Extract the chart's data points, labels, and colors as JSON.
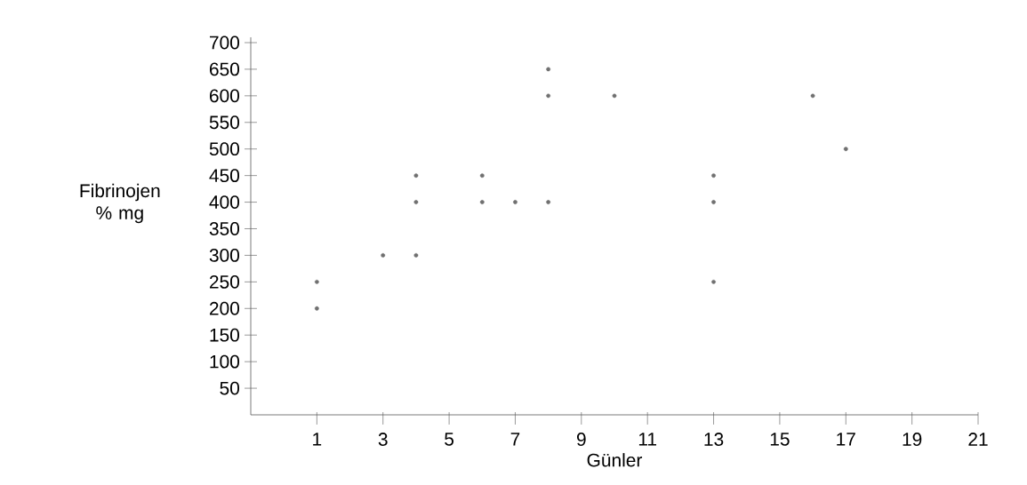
{
  "chart_data": {
    "type": "scatter",
    "xlabel": "Günler",
    "ylabel": "Fibrinojen % mg",
    "x": [
      1,
      1,
      3,
      4,
      4,
      4,
      6,
      6,
      7,
      8,
      8,
      8,
      10,
      13,
      13,
      13,
      16,
      17
    ],
    "values": [
      250,
      200,
      300,
      450,
      400,
      300,
      450,
      400,
      400,
      650,
      600,
      400,
      600,
      450,
      400,
      250,
      600,
      500
    ],
    "color": "#707070",
    "marker": "circle",
    "xlim": [
      -1,
      21
    ],
    "ylim": [
      0,
      710
    ],
    "xticks": [
      1,
      3,
      5,
      7,
      9,
      11,
      13,
      15,
      17,
      19,
      21
    ],
    "yticks": [
      50,
      100,
      150,
      200,
      250,
      300,
      350,
      400,
      450,
      500,
      550,
      600,
      650,
      700
    ]
  }
}
